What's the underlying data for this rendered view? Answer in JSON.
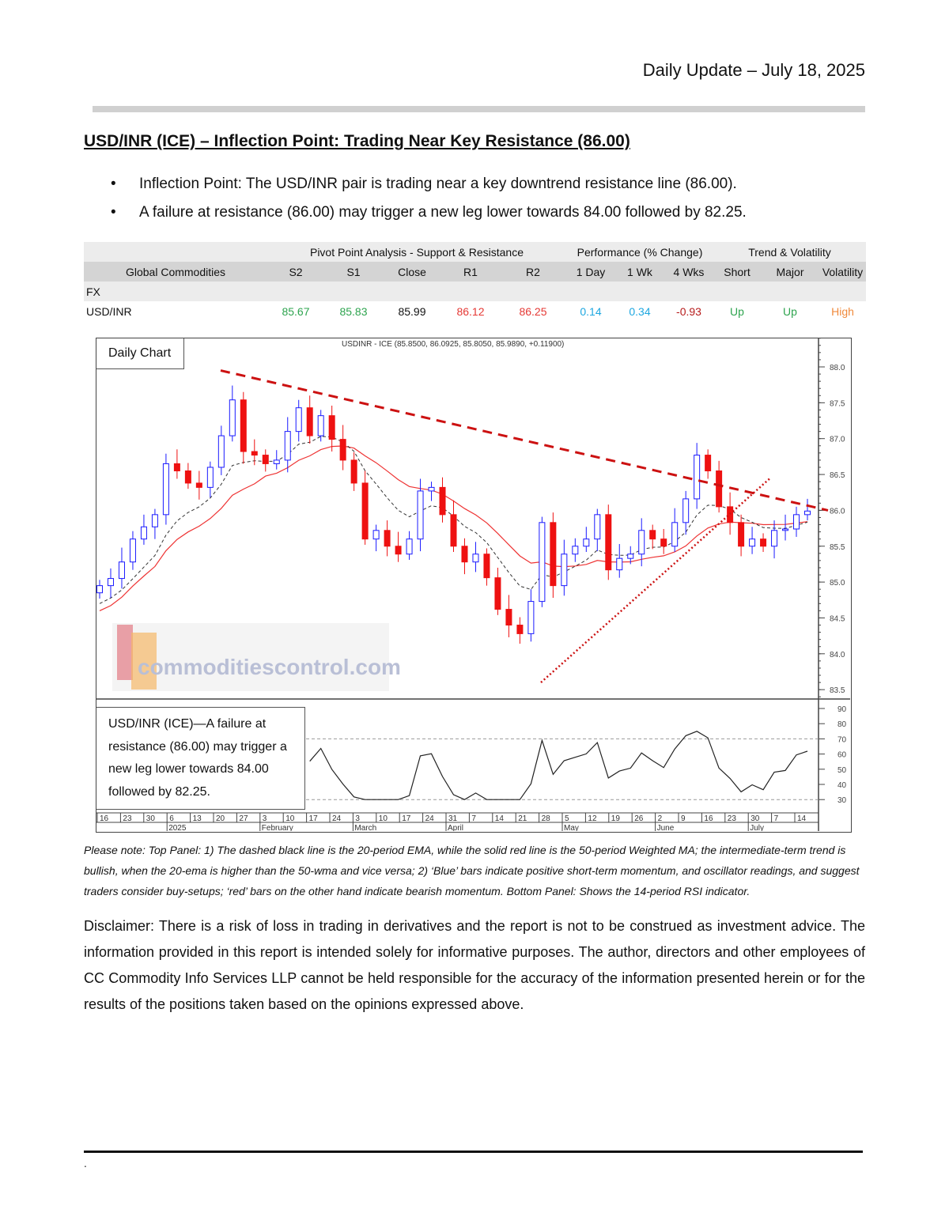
{
  "header": {
    "title": "Daily Update – July 18, 2025"
  },
  "report": {
    "title": "USD/INR (ICE) – Inflection Point: Trading Near Key Resistance (86.00)",
    "bullets": [
      "Inflection Point: The USD/INR pair is trading near a key downtrend resistance line (86.00).",
      "A failure at resistance (86.00) may trigger a new leg lower towards 84.00 followed by 82.25."
    ]
  },
  "table": {
    "groups": [
      "Pivot Point Analysis - Support & Resistance",
      "Performance (% Change)",
      "Trend & Volatility"
    ],
    "columns": [
      "Global Commodities",
      "S2",
      "S1",
      "Close",
      "R1",
      "R2",
      "1 Day",
      "1 Wk",
      "4 Wks",
      "Short",
      "Major",
      "Volatility"
    ],
    "section": "FX",
    "row": {
      "name": "USD/INR",
      "values": [
        "85.67",
        "85.83",
        "85.99",
        "86.12",
        "86.25",
        "0.14",
        "0.34",
        "-0.93",
        "Up",
        "Up",
        "High"
      ],
      "colors": [
        "#2ea44f",
        "#2ea44f",
        "#111111",
        "#e53935",
        "#e53935",
        "#1ea7e0",
        "#1ea7e0",
        "#b71c1c",
        "#2ea44f",
        "#2ea44f",
        "#f08a3c"
      ]
    }
  },
  "chart_data": {
    "type": "candlestick",
    "label": "Daily Chart",
    "title": "USDINR - ICE (85.8500, 86.0925, 85.8050, 85.9890, +0.11900)",
    "ylim": [
      83.3,
      88.4
    ],
    "yticks": [
      "88.0",
      "87.5",
      "87.0",
      "86.5",
      "86.0",
      "85.5",
      "85.0",
      "84.5",
      "84.0",
      "83.5"
    ],
    "rsi_ticks": [
      "90",
      "80",
      "70",
      "60",
      "50",
      "40",
      "30"
    ],
    "xticks": [
      "16",
      "23",
      "30",
      "6",
      "13",
      "20",
      "27",
      "3",
      "10",
      "17",
      "24",
      "3",
      "10",
      "17",
      "24",
      "31",
      "7",
      "14",
      "21",
      "28",
      "5",
      "12",
      "19",
      "26",
      "2",
      "9",
      "16",
      "23",
      "30",
      "7",
      "14"
    ],
    "months": [
      {
        "label": "2025",
        "at": 3
      },
      {
        "label": "February",
        "at": 7
      },
      {
        "label": "March",
        "at": 11
      },
      {
        "label": "April",
        "at": 15
      },
      {
        "label": "May",
        "at": 20
      },
      {
        "label": "June",
        "at": 24
      },
      {
        "label": "July",
        "at": 28
      }
    ],
    "closes": [
      84.95,
      85.05,
      85.28,
      85.6,
      85.77,
      85.94,
      86.65,
      86.55,
      86.38,
      86.32,
      86.6,
      87.04,
      87.54,
      86.82,
      86.77,
      86.65,
      86.7,
      87.1,
      87.43,
      87.04,
      87.32,
      86.99,
      86.7,
      86.38,
      85.6,
      85.72,
      85.5,
      85.39,
      85.6,
      86.27,
      86.32,
      85.94,
      85.5,
      85.28,
      85.39,
      85.06,
      84.62,
      84.4,
      84.28,
      84.73,
      85.83,
      84.95,
      85.39,
      85.5,
      85.6,
      85.94,
      85.17,
      85.33,
      85.39,
      85.72,
      85.6,
      85.5,
      85.83,
      86.16,
      86.77,
      86.55,
      86.05,
      85.83,
      85.5,
      85.6,
      85.5,
      85.72,
      85.74,
      85.94,
      85.99
    ],
    "indicators": [
      "20-period EMA (dashed black)",
      "50-period Weighted MA (solid red)",
      "14-period RSI"
    ],
    "trendlines": [
      {
        "kind": "resistance",
        "from": 87.95,
        "to": 86.0,
        "style": "dashed",
        "color": "#cc1111"
      },
      {
        "kind": "support",
        "from": 83.6,
        "to": 86.45,
        "style": "dotted",
        "color": "#cc1111"
      }
    ],
    "rsi_levels": [
      70,
      30
    ],
    "colors": {
      "up": "#1a1aff",
      "down": "#ee1111",
      "ema": "#333333",
      "wma": "#ee3333"
    },
    "annotation": "USD/INR (ICE)—A failure at resistance (86.00) may trigger a new leg lower towards 84.00 followed by 82.25.",
    "watermark": "commoditiescontrol.com"
  },
  "note": "Please note: Top Panel: 1) The dashed black line is the 20-period EMA, while the solid red line is the 50-period Weighted MA; the intermediate-term trend is bullish, when the 20-ema is higher than the 50-wma and vice versa; 2)  ‘Blue’  bars indicate positive short-term momentum, and oscillator readings, and suggest traders consider buy-setups;  ‘red’  bars on the other hand indicate bearish momentum. Bottom Panel: Shows the 14-period RSI indicator.",
  "disclaimer": "Disclaimer: There is a risk of loss in trading in derivatives and the report is not to be construed as investment advice. The information provided in this report is intended solely for informative purposes. The author, directors and other employees of CC Commodity Info Services LLP cannot be held responsible for the accuracy of the information presented herein or for the results of the positions taken based on the opinions expressed above.",
  "footer": {
    "dot": "."
  }
}
